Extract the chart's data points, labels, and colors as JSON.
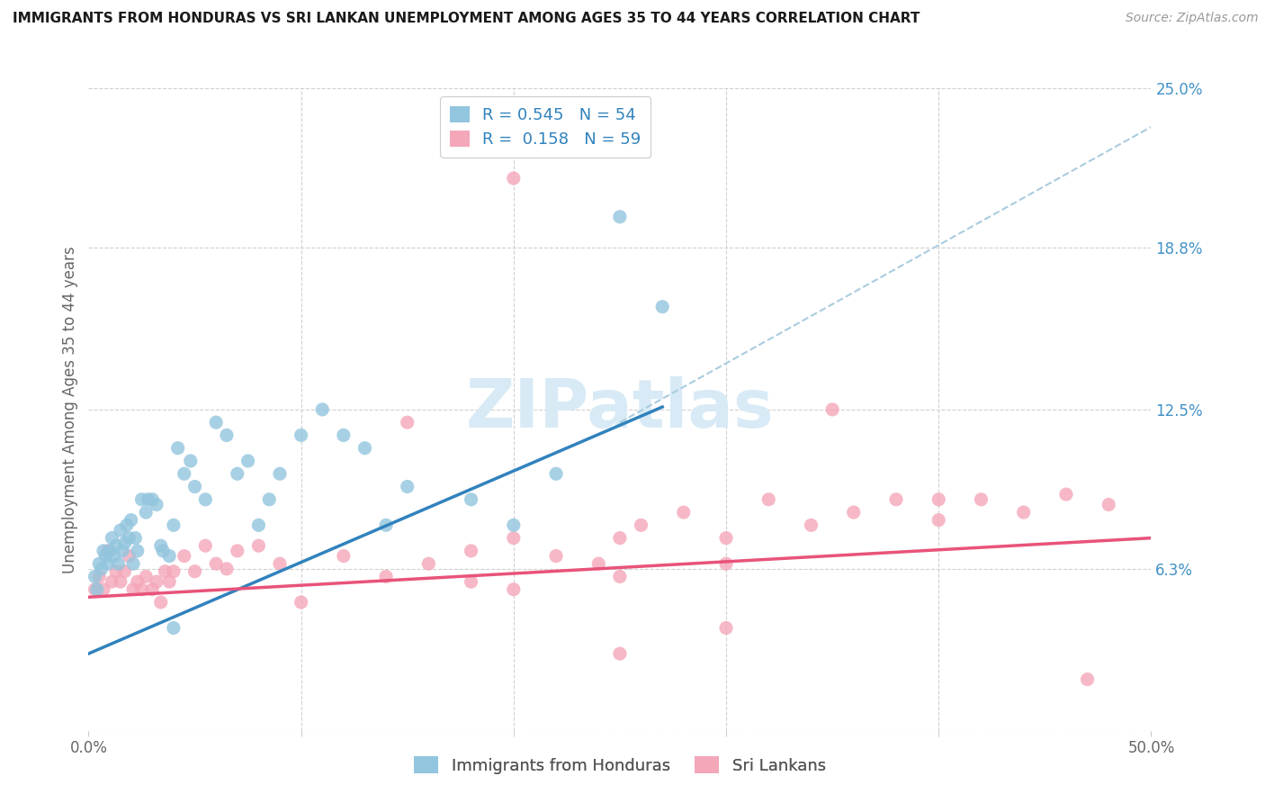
{
  "title": "IMMIGRANTS FROM HONDURAS VS SRI LANKAN UNEMPLOYMENT AMONG AGES 35 TO 44 YEARS CORRELATION CHART",
  "source": "Source: ZipAtlas.com",
  "ylabel": "Unemployment Among Ages 35 to 44 years",
  "xlim": [
    0.0,
    0.5
  ],
  "ylim": [
    0.0,
    0.25
  ],
  "yticks_right": [
    0.0,
    0.063,
    0.125,
    0.188,
    0.25
  ],
  "ytick_right_labels": [
    "",
    "6.3%",
    "12.5%",
    "18.8%",
    "25.0%"
  ],
  "color_blue": "#92c5de",
  "color_pink": "#f4a7b9",
  "line_blue": "#3182bd",
  "line_pink": "#e8537a",
  "line_dash": "#aacce0",
  "watermark": "ZIPatlas",
  "blue_line_x0": 0.0,
  "blue_line_y0": 0.03,
  "blue_line_x1": 0.27,
  "blue_line_y1": 0.126,
  "pink_line_x0": 0.0,
  "pink_line_y0": 0.052,
  "pink_line_x1": 0.5,
  "pink_line_y1": 0.075,
  "dash_line_x0": 0.25,
  "dash_line_y0": 0.12,
  "dash_line_x1": 0.5,
  "dash_line_y1": 0.235,
  "blue_x": [
    0.003,
    0.004,
    0.005,
    0.006,
    0.007,
    0.008,
    0.009,
    0.01,
    0.011,
    0.012,
    0.013,
    0.014,
    0.015,
    0.016,
    0.017,
    0.018,
    0.019,
    0.02,
    0.021,
    0.022,
    0.023,
    0.025,
    0.027,
    0.028,
    0.03,
    0.032,
    0.034,
    0.035,
    0.038,
    0.04,
    0.042,
    0.045,
    0.048,
    0.05,
    0.055,
    0.06,
    0.065,
    0.07,
    0.075,
    0.08,
    0.085,
    0.09,
    0.1,
    0.11,
    0.12,
    0.13,
    0.14,
    0.15,
    0.18,
    0.2,
    0.22,
    0.25,
    0.27,
    0.04
  ],
  "blue_y": [
    0.06,
    0.055,
    0.065,
    0.063,
    0.07,
    0.068,
    0.065,
    0.07,
    0.075,
    0.068,
    0.072,
    0.065,
    0.078,
    0.07,
    0.073,
    0.08,
    0.075,
    0.082,
    0.065,
    0.075,
    0.07,
    0.09,
    0.085,
    0.09,
    0.09,
    0.088,
    0.072,
    0.07,
    0.068,
    0.08,
    0.11,
    0.1,
    0.105,
    0.095,
    0.09,
    0.12,
    0.115,
    0.1,
    0.105,
    0.08,
    0.09,
    0.1,
    0.115,
    0.125,
    0.115,
    0.11,
    0.08,
    0.095,
    0.09,
    0.08,
    0.1,
    0.2,
    0.165,
    0.04
  ],
  "pink_x": [
    0.003,
    0.005,
    0.007,
    0.009,
    0.011,
    0.013,
    0.015,
    0.017,
    0.019,
    0.021,
    0.023,
    0.025,
    0.027,
    0.03,
    0.032,
    0.034,
    0.036,
    0.038,
    0.04,
    0.045,
    0.05,
    0.055,
    0.06,
    0.065,
    0.07,
    0.08,
    0.09,
    0.1,
    0.12,
    0.14,
    0.15,
    0.16,
    0.18,
    0.2,
    0.22,
    0.24,
    0.25,
    0.26,
    0.28,
    0.3,
    0.32,
    0.34,
    0.36,
    0.38,
    0.4,
    0.42,
    0.44,
    0.46,
    0.48,
    0.2,
    0.25,
    0.3,
    0.35,
    0.4,
    0.2,
    0.18,
    0.47,
    0.3,
    0.25
  ],
  "pink_y": [
    0.055,
    0.06,
    0.055,
    0.07,
    0.058,
    0.062,
    0.058,
    0.062,
    0.068,
    0.055,
    0.058,
    0.055,
    0.06,
    0.055,
    0.058,
    0.05,
    0.062,
    0.058,
    0.062,
    0.068,
    0.062,
    0.072,
    0.065,
    0.063,
    0.07,
    0.072,
    0.065,
    0.05,
    0.068,
    0.06,
    0.12,
    0.065,
    0.07,
    0.075,
    0.068,
    0.065,
    0.06,
    0.08,
    0.085,
    0.075,
    0.09,
    0.08,
    0.085,
    0.09,
    0.082,
    0.09,
    0.085,
    0.092,
    0.088,
    0.055,
    0.03,
    0.04,
    0.125,
    0.09,
    0.215,
    0.058,
    0.02,
    0.065,
    0.075
  ]
}
